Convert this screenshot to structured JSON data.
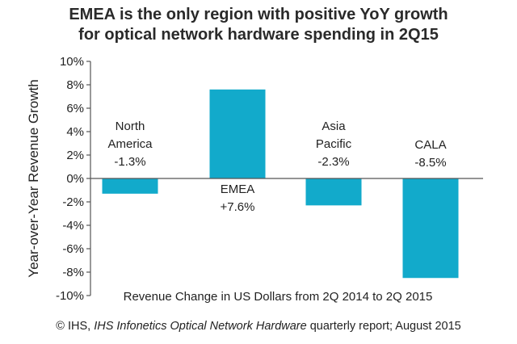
{
  "chart_data": {
    "type": "bar",
    "title": [
      "EMEA is the only region with positive YoY growth",
      "for optical network hardware spending in 2Q15"
    ],
    "categories": [
      "North America",
      "EMEA",
      "Asia Pacific",
      "CALA"
    ],
    "values": [
      -1.3,
      7.6,
      -2.3,
      -8.5
    ],
    "data_labels": [
      [
        "North",
        "America",
        "-1.3%"
      ],
      [
        "EMEA",
        "+7.6%"
      ],
      [
        "Asia",
        "Pacific",
        "-2.3%"
      ],
      [
        "CALA",
        "-8.5%"
      ]
    ],
    "ylabel": "Year-over-Year Revenue Growth",
    "xlabel": "Revenue Change in US Dollars from 2Q 2014 to 2Q 2015",
    "ylim": [
      -10,
      10
    ],
    "yticks": [
      10,
      8,
      6,
      4,
      2,
      0,
      -2,
      -4,
      -6,
      -8,
      -10
    ],
    "ytick_labels": [
      "10%",
      "8%",
      "6%",
      "4%",
      "2%",
      "0%",
      "-2%",
      "-4%",
      "-6%",
      "-8%",
      "-10%"
    ],
    "bar_color": "#12aacb",
    "axis_color": "#555555",
    "grid": false,
    "legend": "none"
  },
  "source": {
    "copyright": "© IHS, ",
    "report": "IHS Infonetics Optical Network Hardware",
    "rest": " quarterly report; August 2015"
  }
}
